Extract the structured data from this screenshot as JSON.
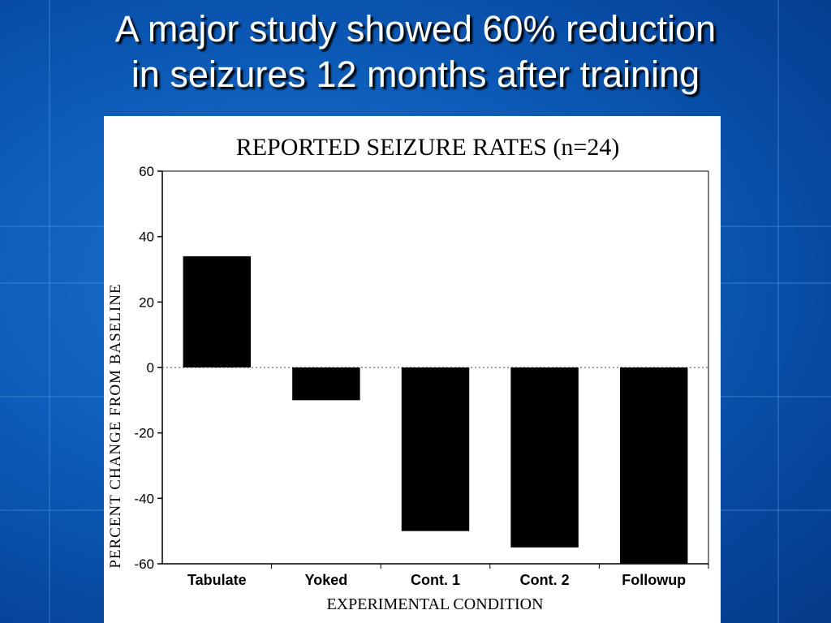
{
  "slide": {
    "title_line1": "A major study showed 60% reduction",
    "title_line2": "in seizures 12 months after training"
  },
  "colors": {
    "background": "#0c5bb8",
    "title_text": "#ffffff",
    "bars": "#000000",
    "panel": "#ffffff"
  },
  "chart_data": {
    "type": "bar",
    "title": "REPORTED SEIZURE RATES (n=24)",
    "xlabel": "EXPERIMENTAL CONDITION",
    "ylabel": "PERCENT CHANGE FROM BASELINE",
    "categories": [
      "Tabulate",
      "Yoked",
      "Cont. 1",
      "Cont. 2",
      "Followup"
    ],
    "values": [
      34,
      -10,
      -50,
      -55,
      -60
    ],
    "ylim": [
      -60,
      60
    ],
    "yticks": [
      60,
      40,
      20,
      0,
      -20,
      -40,
      -60
    ],
    "ytick_labels": [
      "60",
      "40",
      "20",
      "0",
      "-20",
      "-40",
      "-60"
    ],
    "grid": false,
    "legend": "none"
  }
}
